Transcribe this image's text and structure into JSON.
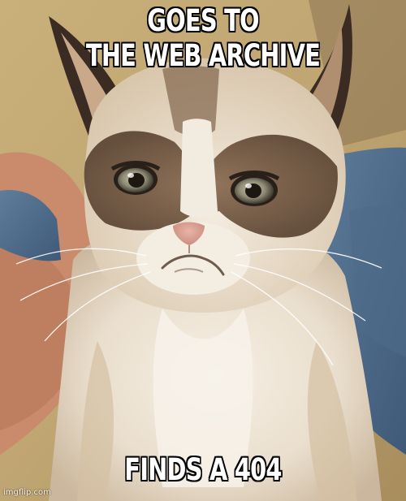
{
  "meme": {
    "top_text": [
      "GOES TO",
      "THE WEB ARCHIVE"
    ],
    "bottom_text": "FINDS A 404",
    "watermark": "imgflip.com"
  }
}
